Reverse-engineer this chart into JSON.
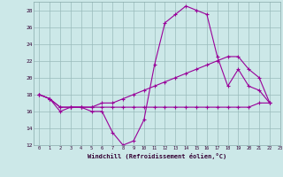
{
  "xlabel": "Windchill (Refroidissement éolien,°C)",
  "xlim": [
    -0.5,
    23
  ],
  "ylim": [
    12,
    29
  ],
  "yticks": [
    12,
    14,
    16,
    18,
    20,
    22,
    24,
    26,
    28
  ],
  "xticks": [
    0,
    1,
    2,
    3,
    4,
    5,
    6,
    7,
    8,
    9,
    10,
    11,
    12,
    13,
    14,
    15,
    16,
    17,
    18,
    19,
    20,
    21,
    22,
    23
  ],
  "bg_color": "#cce8e8",
  "line_color": "#990099",
  "grid_color": "#99bbbb",
  "series": [
    [
      18.0,
      17.5,
      16.0,
      16.5,
      16.5,
      16.0,
      16.0,
      13.5,
      12.0,
      12.5,
      15.0,
      21.5,
      26.5,
      27.5,
      28.5,
      28.0,
      27.5,
      22.5,
      19.0,
      21.0,
      19.0,
      18.5,
      17.0
    ],
    [
      18.0,
      17.5,
      16.5,
      16.5,
      16.5,
      16.5,
      16.5,
      16.5,
      16.5,
      16.5,
      16.5,
      16.5,
      16.5,
      16.5,
      16.5,
      16.5,
      16.5,
      16.5,
      16.5,
      16.5,
      16.5,
      17.0,
      17.0
    ],
    [
      18.0,
      17.5,
      16.5,
      16.5,
      16.5,
      16.5,
      17.0,
      17.0,
      17.5,
      18.0,
      18.5,
      19.0,
      19.5,
      20.0,
      20.5,
      21.0,
      21.5,
      22.0,
      22.5,
      22.5,
      21.0,
      20.0,
      17.0
    ]
  ]
}
